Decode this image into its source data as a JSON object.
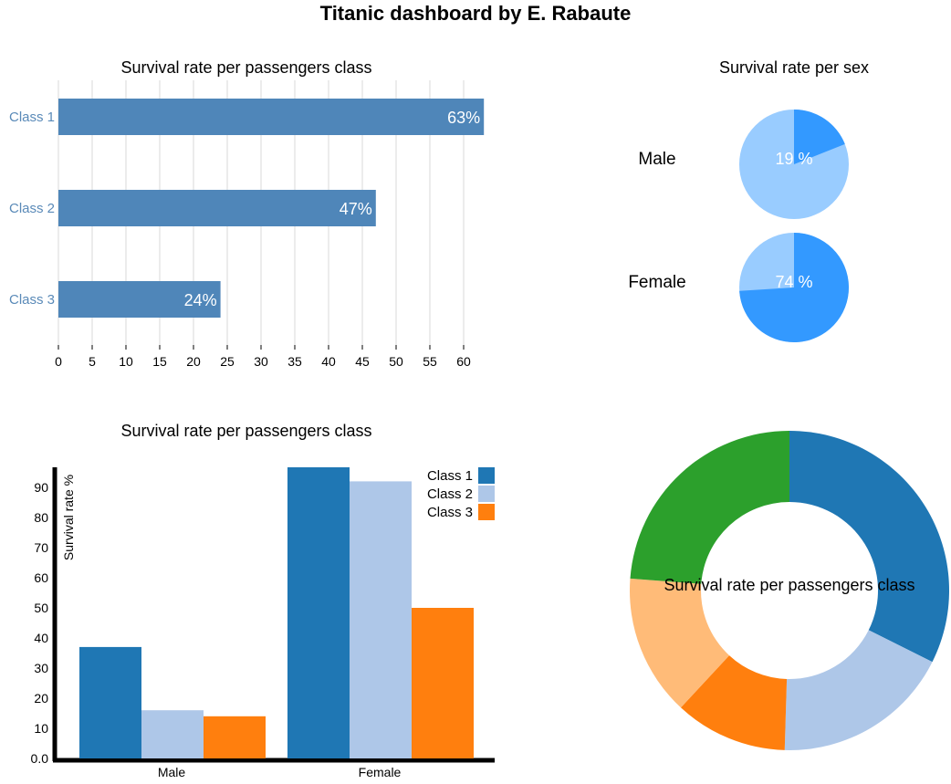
{
  "dashboard": {
    "title": "Titanic dashboard by E. Rabaute"
  },
  "chart_data": [
    {
      "type": "bar",
      "orientation": "horizontal",
      "title": "Survival rate per passengers class",
      "categories": [
        "Class 1",
        "Class 2",
        "Class 3"
      ],
      "values": [
        63,
        47,
        24
      ],
      "value_labels": [
        "63%",
        "47%",
        "24%"
      ],
      "xlim": [
        0,
        63
      ],
      "xticks": [
        "0",
        "5",
        "10",
        "15",
        "20",
        "25",
        "30",
        "35",
        "40",
        "45",
        "50",
        "55",
        "60"
      ],
      "grid": true,
      "colors": {
        "bar": "#4f86b9",
        "category_label": "#5a8ab8"
      }
    },
    {
      "type": "pie",
      "title": "Survival rate per sex",
      "charts": [
        {
          "label": "Male",
          "value": 19,
          "value_label": "19 %"
        },
        {
          "label": "Female",
          "value": 74,
          "value_label": "74 %"
        }
      ],
      "colors": {
        "survived": "#3399ff",
        "rest": "#99ccff"
      }
    },
    {
      "type": "bar",
      "title": "Survival rate per passengers class",
      "categories": [
        "Male",
        "Female"
      ],
      "series": [
        {
          "name": "Class 1",
          "values": [
            37,
            97
          ],
          "color": "#1f77b4"
        },
        {
          "name": "Class 2",
          "values": [
            16,
            92
          ],
          "color": "#aec7e8"
        },
        {
          "name": "Class 3",
          "values": [
            14,
            50
          ],
          "color": "#ff7f0e"
        }
      ],
      "ylabel": "Survival rate %",
      "ylim": [
        0,
        97
      ],
      "yticks": [
        "0.0",
        "10",
        "20",
        "30",
        "40",
        "50",
        "60",
        "70",
        "80",
        "90"
      ],
      "legend": "top-right"
    },
    {
      "type": "pie",
      "variant": "donut",
      "title": "Survival rate per passengers class",
      "values": [
        34,
        19,
        12,
        15,
        25
      ],
      "colors": [
        "#1f77b4",
        "#aec7e8",
        "#ff7f0e",
        "#ffbb78",
        "#2ca02c"
      ]
    }
  ]
}
